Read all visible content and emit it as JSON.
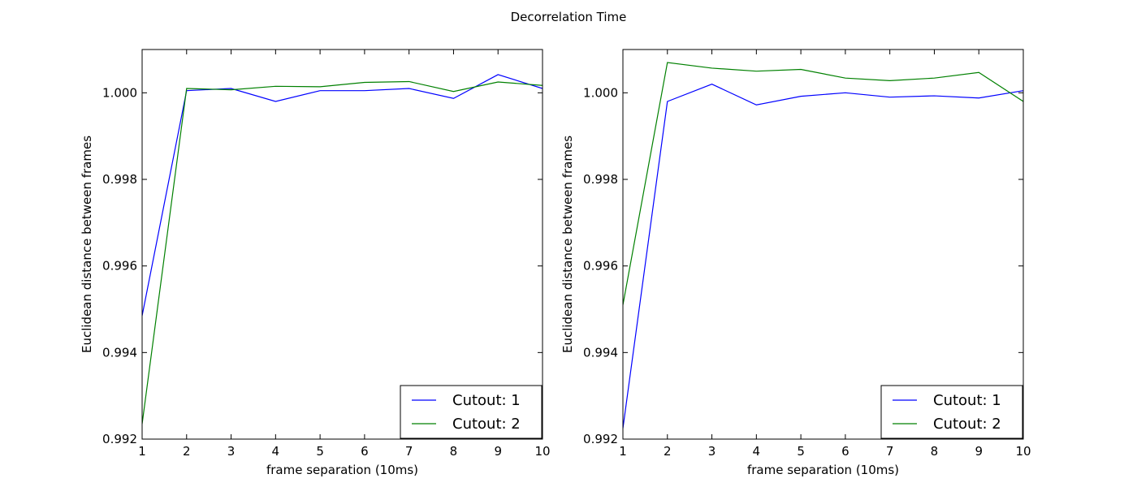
{
  "figure": {
    "title": "Decorrelation Time"
  },
  "colors": {
    "series_1": "#0000ff",
    "series_2": "#008000",
    "axes": "#000000",
    "background": "#ffffff"
  },
  "chart_data": [
    {
      "type": "line",
      "title": "",
      "xlabel": "frame separation (10ms)",
      "ylabel": "Euclidean distance between frames",
      "xlim": [
        1,
        10
      ],
      "ylim": [
        0.992,
        1.001
      ],
      "xticks": [
        "1",
        "2",
        "3",
        "4",
        "5",
        "6",
        "7",
        "8",
        "9",
        "10"
      ],
      "yticks": [
        "0.992",
        "0.994",
        "0.996",
        "0.998",
        "1.000"
      ],
      "grid": false,
      "legend_position": "lower-right",
      "x": [
        1,
        2,
        3,
        4,
        5,
        6,
        7,
        8,
        9,
        10
      ],
      "series": [
        {
          "name": "Cutout: 1",
          "color": "#0000ff",
          "values": [
            0.99485,
            1.00005,
            1.0001,
            0.9998,
            1.00005,
            1.00005,
            1.0001,
            0.99987,
            1.00042,
            1.0001
          ]
        },
        {
          "name": "Cutout: 2",
          "color": "#008000",
          "values": [
            0.99235,
            1.0001,
            1.00007,
            1.00015,
            1.00014,
            1.00024,
            1.00026,
            1.00003,
            1.00025,
            1.00017
          ]
        }
      ]
    },
    {
      "type": "line",
      "title": "",
      "xlabel": "frame separation (10ms)",
      "ylabel": "Euclidean distance between frames",
      "xlim": [
        1,
        10
      ],
      "ylim": [
        0.992,
        1.001
      ],
      "xticks": [
        "1",
        "2",
        "3",
        "4",
        "5",
        "6",
        "7",
        "8",
        "9",
        "10"
      ],
      "yticks": [
        "0.992",
        "0.994",
        "0.996",
        "0.998",
        "1.000"
      ],
      "grid": false,
      "legend_position": "lower-right",
      "x": [
        1,
        2,
        3,
        4,
        5,
        6,
        7,
        8,
        9,
        10
      ],
      "series": [
        {
          "name": "Cutout: 1",
          "color": "#0000ff",
          "values": [
            0.99225,
            0.9998,
            1.0002,
            0.99972,
            0.99992,
            1.0,
            0.9999,
            0.99993,
            0.99988,
            1.00005
          ]
        },
        {
          "name": "Cutout: 2",
          "color": "#008000",
          "values": [
            0.9951,
            1.0007,
            1.00057,
            1.0005,
            1.00054,
            1.00034,
            1.00028,
            1.00034,
            1.00047,
            0.9998
          ]
        }
      ]
    }
  ]
}
